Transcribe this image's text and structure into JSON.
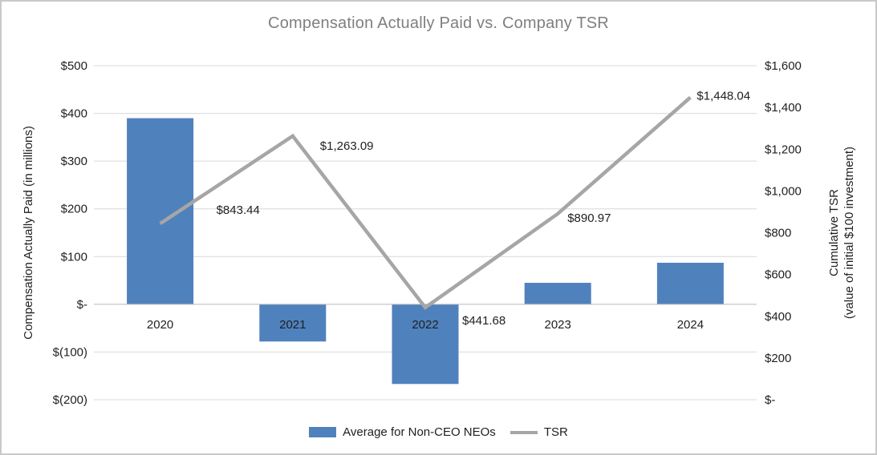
{
  "chart": {
    "title": "Compensation Actually Paid vs. Company TSR",
    "legend": [
      {
        "label": "Average for Non-CEO NEOs",
        "marker": "bar",
        "color": "#4f81bd"
      },
      {
        "label": "TSR",
        "marker": "line",
        "color": "#a6a6a6"
      }
    ]
  },
  "chart_data": {
    "type": "combo",
    "title": "Compensation Actually Paid vs. Company TSR",
    "categories": [
      "2020",
      "2021",
      "2022",
      "2023",
      "2024"
    ],
    "series": [
      {
        "name": "Average for Non-CEO NEOs",
        "type": "bar",
        "axis": "left",
        "color": "#4f81bd",
        "values": [
          390,
          -78,
          -167,
          45,
          87
        ]
      },
      {
        "name": "TSR",
        "type": "line",
        "axis": "right",
        "color": "#a6a6a6",
        "values": [
          843.44,
          1263.09,
          441.68,
          890.97,
          1448.04
        ],
        "data_labels": [
          "$843.44",
          "$1,263.09",
          "$441.68",
          "$890.97",
          "$1,448.04"
        ]
      }
    ],
    "left_axis": {
      "title": "Compensation Actually Paid (in millions)",
      "min": -200,
      "max": 500,
      "step": 100,
      "ticks_top_to_bottom": [
        "$500",
        "$400",
        "$300",
        "$200",
        "$100",
        "$-",
        "$(100)",
        "$(200)"
      ]
    },
    "right_axis": {
      "title_line1": "Cumulative TSR",
      "title_line2": "(value of initial $100 investment)",
      "min": 0,
      "max": 1600,
      "step": 200,
      "ticks_top_to_bottom": [
        "$1,600",
        "$1,400",
        "$1,200",
        "$1,000",
        "$800",
        "$600",
        "$400",
        "$200",
        "$-"
      ]
    },
    "grid": true,
    "legend_position": "bottom",
    "title_color": "#7f7f7f",
    "grid_color": "#d9d9d9",
    "axis_line_color": "#bfbfbf",
    "text_color": "#1f1f1f"
  }
}
